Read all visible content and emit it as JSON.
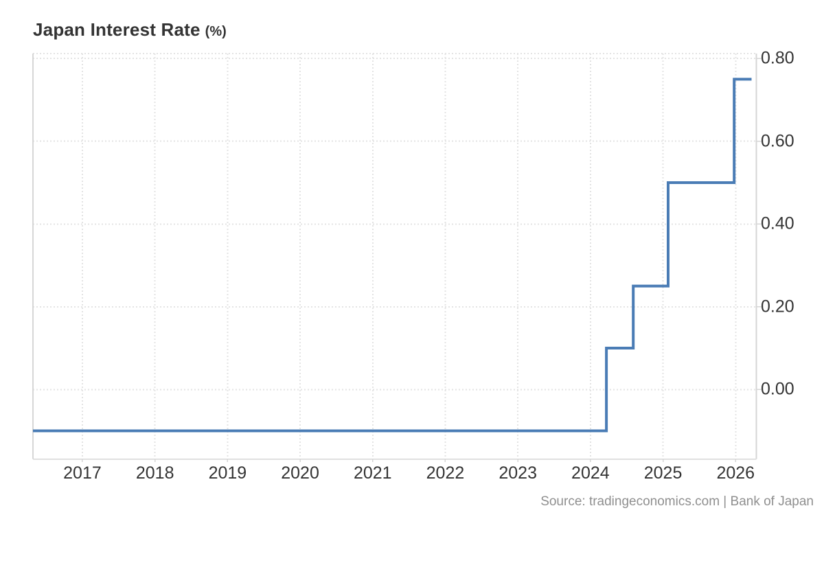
{
  "header": {
    "title": "Japan Interest Rate",
    "unit_suffix": "(%)"
  },
  "footer": {
    "source_text": "Source: tradingeconomics.com | Bank of Japan"
  },
  "colors": {
    "background": "#ffffff",
    "line": "#4a7cb5",
    "grid": "#e3e3e3",
    "axis_border": "#d6d6d6",
    "tick": "#d6d6d6",
    "title_text": "#333333",
    "axis_text": "#333333",
    "source_text": "#8f8f8f"
  },
  "chart_data": {
    "type": "line",
    "line_style": "step-after",
    "title": "Japan Interest Rate (%)",
    "xlabel": "",
    "ylabel": "%",
    "grid": "dotted",
    "legend": "none",
    "x_ticks": [
      2017,
      2018,
      2019,
      2020,
      2021,
      2022,
      2023,
      2024,
      2025,
      2026
    ],
    "x_tick_labels": [
      "2017",
      "2018",
      "2019",
      "2020",
      "2021",
      "2022",
      "2023",
      "2024",
      "2025",
      "2026"
    ],
    "y_ticks": [
      0.0,
      0.2,
      0.4,
      0.6,
      0.8
    ],
    "y_tick_labels": [
      "0.00",
      "0.20",
      "0.40",
      "0.60",
      "0.80"
    ],
    "xlim": [
      2016.319,
      2026.286
    ],
    "ylim": [
      -0.168,
      0.812
    ],
    "series": [
      {
        "name": "Japan Interest Rate",
        "points": [
          {
            "x": 2016.319,
            "y": -0.1
          },
          {
            "x": 2024.22,
            "y": 0.1
          },
          {
            "x": 2024.59,
            "y": 0.25
          },
          {
            "x": 2025.07,
            "y": 0.5
          },
          {
            "x": 2025.98,
            "y": 0.75
          }
        ],
        "x_end": 2026.22
      }
    ]
  }
}
